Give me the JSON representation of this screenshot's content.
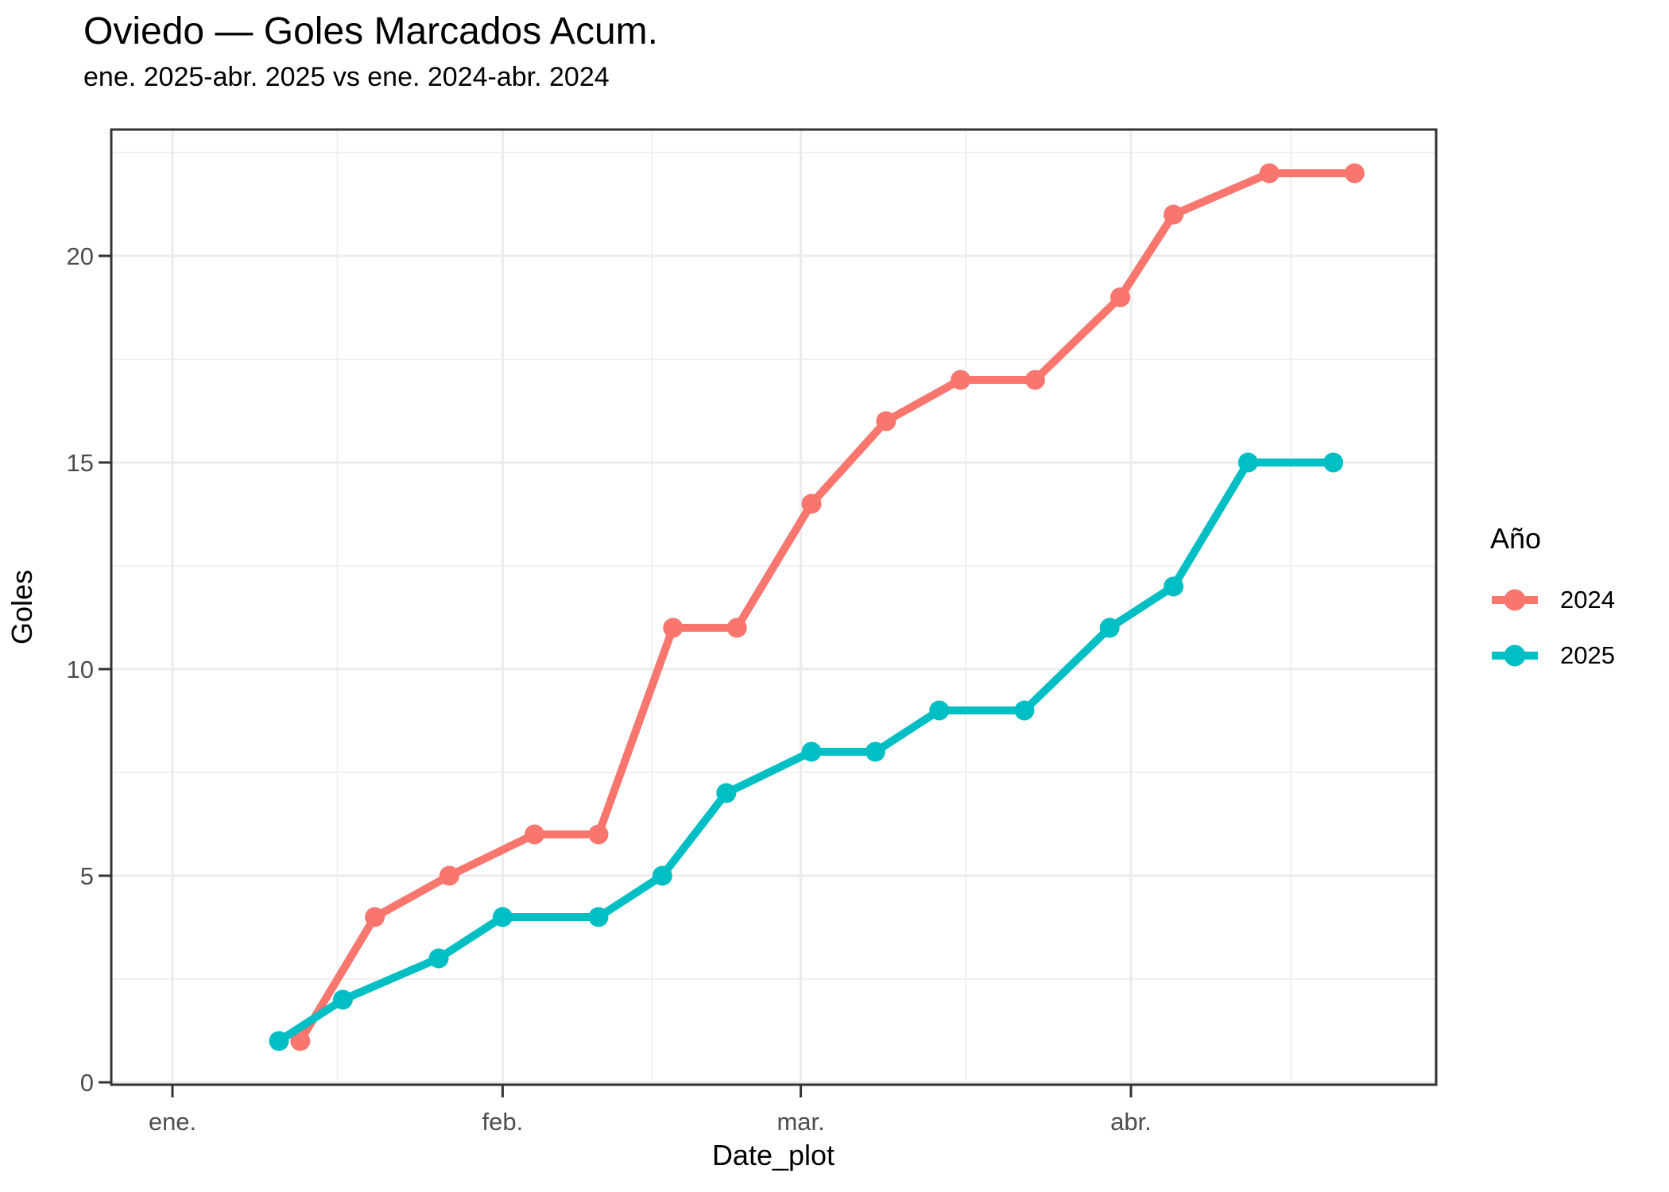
{
  "chart_data": {
    "type": "line",
    "title": "Oviedo — Goles Marcados Acum.",
    "subtitle": "ene. 2025-abr. 2025 vs ene. 2024-abr. 2024",
    "xlabel": "Date_plot",
    "ylabel": "Goles",
    "x_unit": "day_of_year",
    "x_ticks": [
      {
        "label": "ene.",
        "day": 1
      },
      {
        "label": "feb.",
        "day": 32
      },
      {
        "label": "mar.",
        "day": 60
      },
      {
        "label": "abr.",
        "day": 91
      }
    ],
    "x_minor_days": [
      16.5,
      46,
      75.5,
      106
    ],
    "y_ticks": [
      0,
      5,
      10,
      15,
      20
    ],
    "y_minor": [
      2.5,
      7.5,
      12.5,
      17.5,
      22.5
    ],
    "ylim": [
      -0.05,
      23.05
    ],
    "grid": true,
    "legend_position": "right",
    "legend": {
      "title": "Año",
      "entries": [
        {
          "label": "2024",
          "color": "#F8766D"
        },
        {
          "label": "2025",
          "color": "#00BFC4"
        }
      ]
    },
    "series": [
      {
        "name": "2024",
        "color": "#F8766D",
        "days": [
          13,
          20,
          27,
          35,
          41,
          48,
          54,
          61,
          68,
          75,
          82,
          90,
          95,
          104,
          112
        ],
        "values": [
          1,
          4,
          5,
          6,
          6,
          11,
          11,
          14,
          16,
          17,
          17,
          19,
          21,
          22,
          22
        ]
      },
      {
        "name": "2025",
        "color": "#00BFC4",
        "days": [
          11,
          17,
          26,
          32,
          41,
          47,
          53,
          61,
          67,
          73,
          81,
          89,
          95,
          102,
          110
        ],
        "values": [
          1,
          2,
          3,
          4,
          4,
          5,
          7,
          8,
          8,
          9,
          9,
          11,
          12,
          15,
          15
        ]
      }
    ],
    "style": {
      "grid_major_color": "#ebebeb",
      "grid_minor_color": "#f0f0f0",
      "panel_border_color": "#333333",
      "tick_color": "#333333",
      "tick_label_color": "#4d4d4d"
    }
  }
}
